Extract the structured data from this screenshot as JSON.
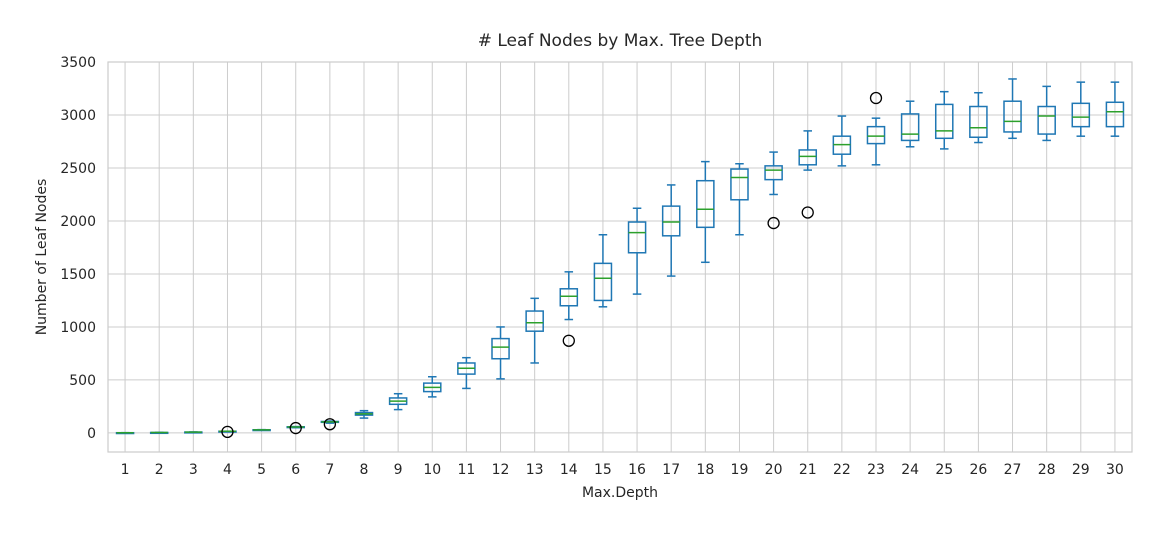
{
  "chart_data": {
    "type": "box",
    "title": "# Leaf Nodes by Max. Tree Depth",
    "xlabel": "Max.Depth",
    "ylabel": "Number of Leaf Nodes",
    "ylim": [
      -180,
      3500
    ],
    "yticks": [
      0,
      500,
      1000,
      1500,
      2000,
      2500,
      3000,
      3500
    ],
    "grid": true,
    "colors": {
      "box": "#1f77b4",
      "median": "#2ca02c",
      "flier": "#000000",
      "grid": "#cccccc"
    },
    "categories": [
      "1",
      "2",
      "3",
      "4",
      "5",
      "6",
      "7",
      "8",
      "9",
      "10",
      "11",
      "12",
      "13",
      "14",
      "15",
      "16",
      "17",
      "18",
      "19",
      "20",
      "21",
      "22",
      "23",
      "24",
      "25",
      "26",
      "27",
      "28",
      "29",
      "30"
    ],
    "boxes": [
      {
        "whislo": 2,
        "q1": 2,
        "med": 2,
        "q3": 2,
        "whishi": 2,
        "fliers": []
      },
      {
        "whislo": 4,
        "q1": 4,
        "med": 4,
        "q3": 4,
        "whishi": 4,
        "fliers": []
      },
      {
        "whislo": 8,
        "q1": 8,
        "med": 8,
        "q3": 8,
        "whishi": 8,
        "fliers": []
      },
      {
        "whislo": 14,
        "q1": 15,
        "med": 16,
        "q3": 16,
        "whishi": 16,
        "fliers": [
          10
        ]
      },
      {
        "whislo": 26,
        "q1": 28,
        "med": 29,
        "q3": 30,
        "whishi": 31,
        "fliers": []
      },
      {
        "whislo": 50,
        "q1": 54,
        "med": 56,
        "q3": 58,
        "whishi": 60,
        "fliers": [
          46
        ]
      },
      {
        "whislo": 92,
        "q1": 100,
        "med": 104,
        "q3": 108,
        "whishi": 112,
        "fliers": [
          82
        ]
      },
      {
        "whislo": 140,
        "q1": 168,
        "med": 180,
        "q3": 192,
        "whishi": 210,
        "fliers": []
      },
      {
        "whislo": 220,
        "q1": 270,
        "med": 300,
        "q3": 330,
        "whishi": 370,
        "fliers": []
      },
      {
        "whislo": 340,
        "q1": 390,
        "med": 430,
        "q3": 470,
        "whishi": 530,
        "fliers": []
      },
      {
        "whislo": 420,
        "q1": 555,
        "med": 610,
        "q3": 660,
        "whishi": 710,
        "fliers": []
      },
      {
        "whislo": 510,
        "q1": 700,
        "med": 810,
        "q3": 890,
        "whishi": 1000,
        "fliers": []
      },
      {
        "whislo": 660,
        "q1": 960,
        "med": 1040,
        "q3": 1150,
        "whishi": 1270,
        "fliers": []
      },
      {
        "whislo": 1070,
        "q1": 1200,
        "med": 1290,
        "q3": 1360,
        "whishi": 1520,
        "fliers": [
          870
        ]
      },
      {
        "whislo": 1190,
        "q1": 1250,
        "med": 1460,
        "q3": 1600,
        "whishi": 1870,
        "fliers": []
      },
      {
        "whislo": 1310,
        "q1": 1700,
        "med": 1890,
        "q3": 1990,
        "whishi": 2120,
        "fliers": []
      },
      {
        "whislo": 1480,
        "q1": 1860,
        "med": 1990,
        "q3": 2140,
        "whishi": 2340,
        "fliers": []
      },
      {
        "whislo": 1610,
        "q1": 1940,
        "med": 2110,
        "q3": 2380,
        "whishi": 2560,
        "fliers": []
      },
      {
        "whislo": 1870,
        "q1": 2200,
        "med": 2410,
        "q3": 2490,
        "whishi": 2540,
        "fliers": []
      },
      {
        "whislo": 2250,
        "q1": 2390,
        "med": 2480,
        "q3": 2520,
        "whishi": 2650,
        "fliers": [
          1980
        ]
      },
      {
        "whislo": 2480,
        "q1": 2530,
        "med": 2610,
        "q3": 2670,
        "whishi": 2850,
        "fliers": [
          2080
        ]
      },
      {
        "whislo": 2520,
        "q1": 2630,
        "med": 2720,
        "q3": 2800,
        "whishi": 2990,
        "fliers": []
      },
      {
        "whislo": 2530,
        "q1": 2730,
        "med": 2800,
        "q3": 2890,
        "whishi": 2970,
        "fliers": [
          3160
        ]
      },
      {
        "whislo": 2700,
        "q1": 2760,
        "med": 2820,
        "q3": 3010,
        "whishi": 3130,
        "fliers": []
      },
      {
        "whislo": 2680,
        "q1": 2780,
        "med": 2850,
        "q3": 3100,
        "whishi": 3220,
        "fliers": []
      },
      {
        "whislo": 2740,
        "q1": 2790,
        "med": 2880,
        "q3": 3080,
        "whishi": 3210,
        "fliers": []
      },
      {
        "whislo": 2780,
        "q1": 2840,
        "med": 2940,
        "q3": 3130,
        "whishi": 3340,
        "fliers": []
      },
      {
        "whislo": 2760,
        "q1": 2820,
        "med": 2990,
        "q3": 3080,
        "whishi": 3270,
        "fliers": []
      },
      {
        "whislo": 2800,
        "q1": 2890,
        "med": 2980,
        "q3": 3110,
        "whishi": 3310,
        "fliers": []
      },
      {
        "whislo": 2800,
        "q1": 2890,
        "med": 3030,
        "q3": 3120,
        "whishi": 3310,
        "fliers": []
      }
    ]
  }
}
